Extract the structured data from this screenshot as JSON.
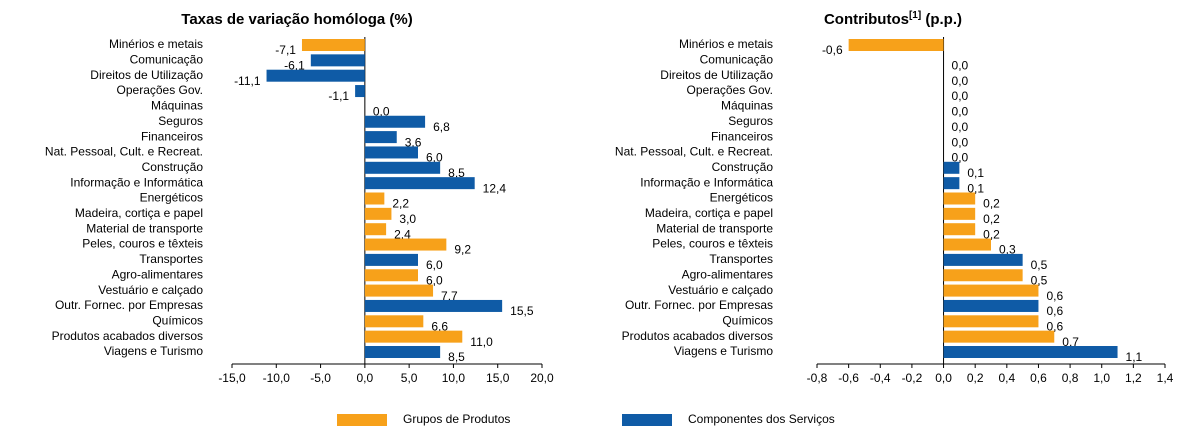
{
  "chart_data": [
    {
      "type": "hbar",
      "title": "Taxas de variação homóloga (%)",
      "categories": [
        "Minérios e metais",
        "Comunicação",
        "Direitos de Utilização",
        "Operações Gov.",
        "Máquinas",
        "Seguros",
        "Financeiros",
        "Nat. Pessoal, Cult. e Recreat.",
        "Construção",
        "Informação e Informática",
        "Energéticos",
        "Madeira, cortiça e papel",
        "Material de transporte",
        "Peles, couros e têxteis",
        "Transportes",
        "Agro-alimentares",
        "Vestuário e calçado",
        "Outr. Fornec. por Empresas",
        "Químicos",
        "Produtos acabados diversos",
        "Viagens e Turismo"
      ],
      "values": [
        -7.1,
        -6.1,
        -11.1,
        -1.1,
        0.0,
        6.8,
        3.6,
        6.0,
        8.5,
        12.4,
        2.2,
        3.0,
        2.4,
        9.2,
        6.0,
        6.0,
        7.7,
        15.5,
        6.6,
        11.0,
        8.5
      ],
      "value_labels": [
        "-7,1",
        "-6,1",
        "-11,1",
        "-1,1",
        "0,0",
        "6,8",
        "3,6",
        "6,0",
        "8,5",
        "12,4",
        "2,2",
        "3,0",
        "2,4",
        "9,2",
        "6,0",
        "6,0",
        "7,7",
        "15,5",
        "6,6",
        "11,0",
        "8,5"
      ],
      "colors": [
        "#f7a11a",
        "#0f5ba6",
        "#0f5ba6",
        "#0f5ba6",
        "#f7a11a",
        "#0f5ba6",
        "#0f5ba6",
        "#0f5ba6",
        "#0f5ba6",
        "#0f5ba6",
        "#f7a11a",
        "#f7a11a",
        "#f7a11a",
        "#f7a11a",
        "#0f5ba6",
        "#f7a11a",
        "#f7a11a",
        "#0f5ba6",
        "#f7a11a",
        "#f7a11a",
        "#0f5ba6"
      ],
      "xlim": [
        -15,
        20
      ],
      "xticks": [
        {
          "value": -15,
          "label": "-15,0"
        },
        {
          "value": -10,
          "label": "-10,0"
        },
        {
          "value": -5,
          "label": "-5,0"
        },
        {
          "value": 0,
          "label": "0,0"
        },
        {
          "value": 5,
          "label": "5,0"
        },
        {
          "value": 10,
          "label": "10,0"
        },
        {
          "value": 15,
          "label": "15,0"
        },
        {
          "value": 20,
          "label": "20,0"
        }
      ]
    },
    {
      "type": "hbar",
      "title": "Contributos",
      "title_superscript": "[1]",
      "title_unit": "(p.p.)",
      "categories": [
        "Minérios e metais",
        "Comunicação",
        "Direitos de Utilização",
        "Operações Gov.",
        "Máquinas",
        "Seguros",
        "Financeiros",
        "Nat. Pessoal, Cult. e Recreat.",
        "Construção",
        "Informação e Informática",
        "Energéticos",
        "Madeira, cortiça e papel",
        "Material de transporte",
        "Peles, couros e têxteis",
        "Transportes",
        "Agro-alimentares",
        "Vestuário e calçado",
        "Outr. Fornec. por Empresas",
        "Químicos",
        "Produtos acabados diversos",
        "Viagens e Turismo"
      ],
      "values": [
        -0.6,
        0.0,
        0.0,
        0.0,
        0.0,
        0.0,
        0.0,
        0.0,
        0.1,
        0.1,
        0.2,
        0.2,
        0.2,
        0.3,
        0.5,
        0.5,
        0.6,
        0.6,
        0.6,
        0.7,
        1.1
      ],
      "value_labels": [
        "-0,6",
        "0,0",
        "0,0",
        "0,0",
        "0,0",
        "0,0",
        "0,0",
        "0,0",
        "0,1",
        "0,1",
        "0,2",
        "0,2",
        "0,2",
        "0,3",
        "0,5",
        "0,5",
        "0,6",
        "0,6",
        "0,6",
        "0,7",
        "1,1"
      ],
      "colors": [
        "#f7a11a",
        "#0f5ba6",
        "#0f5ba6",
        "#0f5ba6",
        "#f7a11a",
        "#0f5ba6",
        "#0f5ba6",
        "#0f5ba6",
        "#0f5ba6",
        "#0f5ba6",
        "#f7a11a",
        "#f7a11a",
        "#f7a11a",
        "#f7a11a",
        "#0f5ba6",
        "#f7a11a",
        "#f7a11a",
        "#0f5ba6",
        "#f7a11a",
        "#f7a11a",
        "#0f5ba6"
      ],
      "xlim": [
        -0.8,
        1.4
      ],
      "xticks": [
        {
          "value": -0.8,
          "label": "-0,8"
        },
        {
          "value": -0.6,
          "label": "-0,6"
        },
        {
          "value": -0.4,
          "label": "-0,4"
        },
        {
          "value": -0.2,
          "label": "-0,2"
        },
        {
          "value": 0,
          "label": "0,0"
        },
        {
          "value": 0.2,
          "label": "0,2"
        },
        {
          "value": 0.4,
          "label": "0,4"
        },
        {
          "value": 0.6,
          "label": "0,6"
        },
        {
          "value": 0.8,
          "label": "0,8"
        },
        {
          "value": 1.0,
          "label": "1,0"
        },
        {
          "value": 1.2,
          "label": "1,2"
        },
        {
          "value": 1.4,
          "label": "1,4"
        }
      ]
    }
  ],
  "legend": [
    {
      "name": "Grupos de Produtos",
      "color": "#f7a11a"
    },
    {
      "name": "Componentes dos Serviços",
      "color": "#0f5ba6"
    }
  ]
}
